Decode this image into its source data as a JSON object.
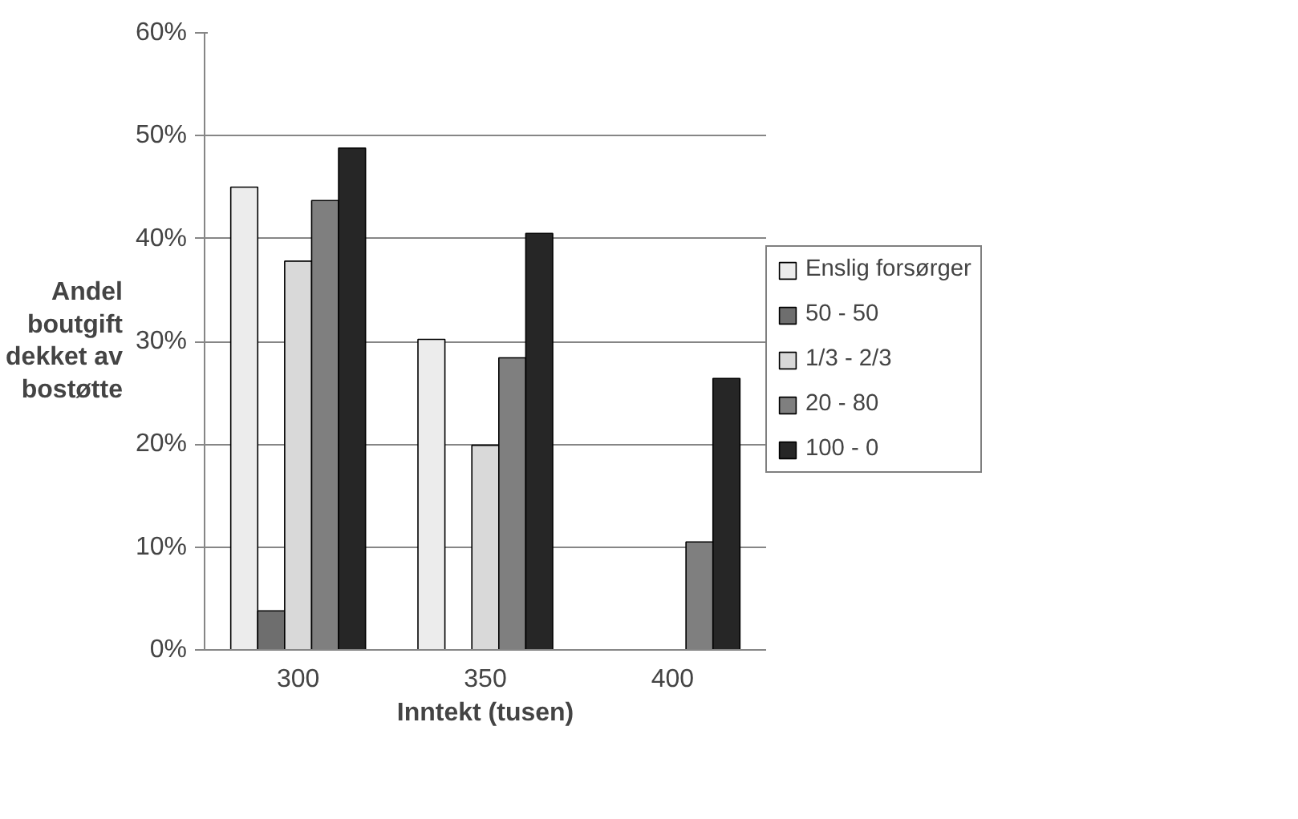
{
  "chart_data": {
    "type": "bar",
    "xlabel": "Inntekt (tusen)",
    "ylabel": "Andel\nboutgift\ndekket av\nbostøtte",
    "categories": [
      "300",
      "350",
      "400"
    ],
    "series": [
      {
        "name": "Enslig forsørger",
        "color": "#ececec",
        "values": [
          45.0,
          30.2,
          null
        ]
      },
      {
        "name": "50 - 50",
        "color": "#6e6e6e",
        "values": [
          3.8,
          null,
          null
        ]
      },
      {
        "name": "1/3 - 2/3",
        "color": "#d9d9d9",
        "values": [
          37.8,
          19.9,
          null
        ]
      },
      {
        "name": "20 - 80",
        "color": "#7f7f7f",
        "values": [
          43.7,
          28.4,
          10.5
        ]
      },
      {
        "name": "100 - 0",
        "color": "#262626",
        "values": [
          48.8,
          40.5,
          26.4
        ]
      }
    ],
    "ylim": [
      0,
      60
    ],
    "yticks": [
      {
        "value": 0,
        "label": "0%"
      },
      {
        "value": 10,
        "label": "10%"
      },
      {
        "value": 20,
        "label": "20%"
      },
      {
        "value": 30,
        "label": "30%"
      },
      {
        "value": 40,
        "label": "40%"
      },
      {
        "value": 50,
        "label": "50%"
      },
      {
        "value": 60,
        "label": "60%"
      }
    ],
    "grid": "y",
    "legend": "right"
  }
}
